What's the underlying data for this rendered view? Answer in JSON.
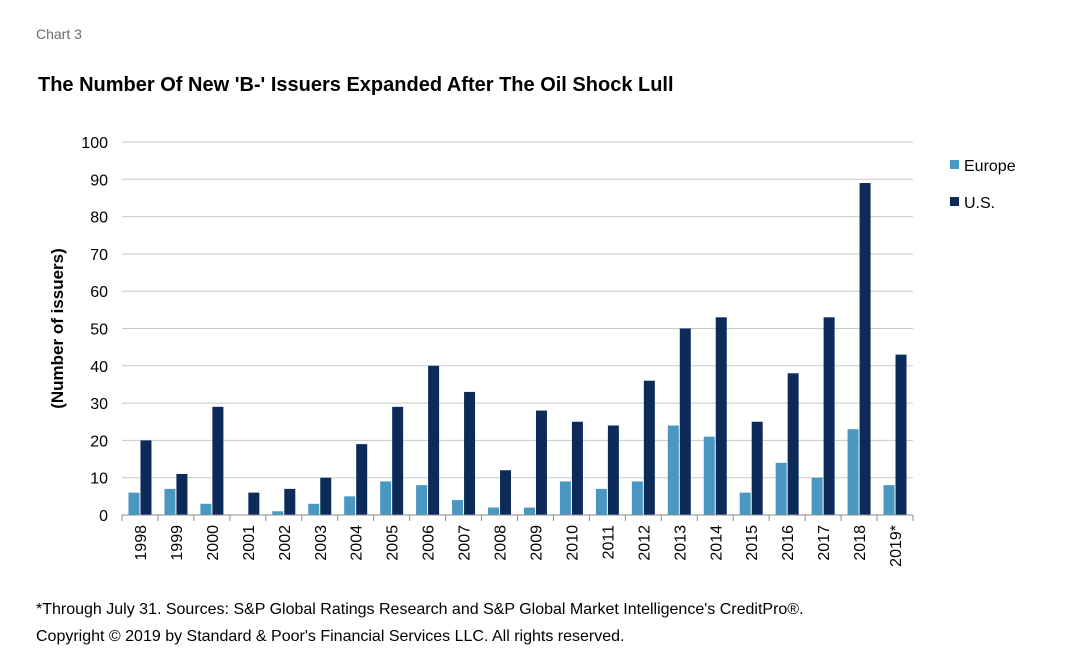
{
  "header": {
    "chart_number": "Chart 3",
    "title": "The Number Of New 'B-' Issuers Expanded After The Oil Shock Lull"
  },
  "footer": {
    "note": "*Through July 31. Sources: S&P Global Ratings Research and S&P Global Market Intelligence's CreditPro®.",
    "copyright": "Copyright © 2019 by Standard & Poor's Financial Services LLC. All rights reserved."
  },
  "colors": {
    "europe": "#4a97c2",
    "us": "#0c2b58",
    "grid": "#c8c8c8",
    "axis": "#8c8c8c"
  },
  "chart_data": {
    "type": "bar",
    "title": "The Number Of New 'B-' Issuers Expanded After The Oil Shock Lull",
    "xlabel": "",
    "ylabel": "(Number of issuers)",
    "ylim": [
      0,
      100
    ],
    "yticks": [
      0,
      10,
      20,
      30,
      40,
      50,
      60,
      70,
      80,
      90,
      100
    ],
    "grid": true,
    "legend_position": "right",
    "categories": [
      "1998",
      "1999",
      "2000",
      "2001",
      "2002",
      "2003",
      "2004",
      "2005",
      "2006",
      "2007",
      "2008",
      "2009",
      "2010",
      "2011",
      "2012",
      "2013",
      "2014",
      "2015",
      "2016",
      "2017",
      "2018",
      "2019*"
    ],
    "series": [
      {
        "name": "Europe",
        "values": [
          6,
          7,
          3,
          0,
          1,
          3,
          5,
          9,
          8,
          4,
          2,
          2,
          9,
          7,
          9,
          24,
          21,
          6,
          14,
          10,
          23,
          8
        ]
      },
      {
        "name": "U.S.",
        "values": [
          20,
          11,
          29,
          6,
          7,
          10,
          19,
          29,
          40,
          33,
          12,
          28,
          25,
          24,
          36,
          50,
          53,
          25,
          38,
          53,
          89,
          43
        ]
      }
    ]
  }
}
